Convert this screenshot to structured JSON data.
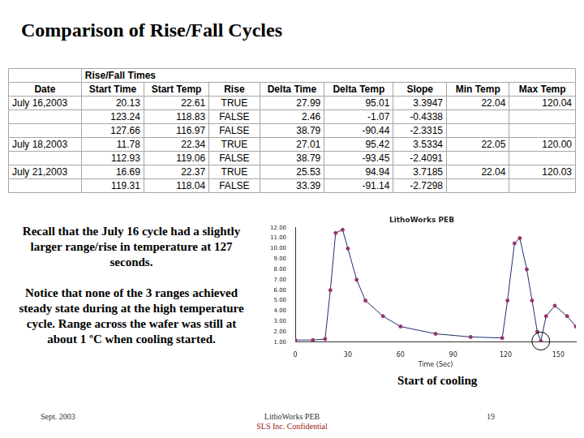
{
  "title": "Comparison of Rise/Fall Cycles",
  "table": {
    "group_header": "Rise/Fall Times",
    "columns": [
      "Date",
      "Start Time",
      "Start Temp",
      "Rise",
      "Delta Time",
      "Delta Temp",
      "Slope",
      "Min Temp",
      "Max Temp"
    ],
    "rows": [
      [
        "July 16,2003",
        "20.13",
        "22.61",
        "TRUE",
        "27.99",
        "95.01",
        "3.3947",
        "22.04",
        "120.04"
      ],
      [
        null,
        "123.24",
        "118.83",
        "FALSE",
        "2.46",
        "-1.07",
        "-0.4338",
        null,
        null
      ],
      [
        null,
        "127.66",
        "116.97",
        "FALSE",
        "38.79",
        "-90.44",
        "-2.3315",
        null,
        null
      ],
      [
        "July 18,2003",
        "11.78",
        "22.34",
        "TRUE",
        "27.01",
        "95.42",
        "3.5334",
        "22.05",
        "120.00"
      ],
      [
        null,
        "112.93",
        "119.06",
        "FALSE",
        "38.79",
        "-93.45",
        "-2.4091",
        null,
        null
      ],
      [
        "July 21,2003",
        "16.69",
        "22.37",
        "TRUE",
        "25.53",
        "94.94",
        "3.7185",
        "22.04",
        "120.03"
      ],
      [
        null,
        "119.31",
        "118.04",
        "FALSE",
        "33.39",
        "-91.14",
        "-2.7298",
        null,
        null
      ]
    ]
  },
  "paragraphs": [
    "Recall that the July 16 cycle had a slightly larger range/rise in temperature at 127 seconds.",
    "Notice that none of the 3 ranges achieved steady state during at the high temperature cycle. Range across the wafer was still at about 1 ºC when cooling started."
  ],
  "chart_data": {
    "type": "line",
    "title": "LithoWorks PEB",
    "x_label": "Time (Sec)",
    "annotation": "Start of cooling",
    "x": [
      0,
      10,
      17,
      20,
      23,
      27,
      30,
      35,
      40,
      50,
      60,
      80,
      100,
      118,
      121,
      125,
      128,
      132,
      135,
      138,
      140,
      143,
      148,
      155,
      160
    ],
    "values": [
      1.2,
      1.2,
      1.3,
      6,
      11.5,
      11.8,
      10,
      7,
      5,
      3.5,
      2.5,
      1.8,
      1.5,
      1.4,
      5,
      10.5,
      11,
      8,
      5,
      2,
      1.1,
      3.5,
      4.5,
      3.5,
      2.5
    ],
    "color": "#993366",
    "marker": "circle",
    "line_style": "solid",
    "xlim": [
      0,
      160
    ],
    "xticks": [
      0,
      30,
      60,
      90,
      120,
      150
    ],
    "ylim": [
      1,
      12
    ],
    "yticks": [
      {
        "value": 1,
        "label": "1.00"
      },
      {
        "value": 2,
        "label": "2.00"
      },
      {
        "value": 3,
        "label": "3.00"
      },
      {
        "value": 4,
        "label": "4.00"
      },
      {
        "value": 5,
        "label": "5.00"
      },
      {
        "value": 6,
        "label": "6.00"
      },
      {
        "value": 7,
        "label": "7.00"
      },
      {
        "value": 8,
        "label": "8.00"
      },
      {
        "value": 9,
        "label": "9.00"
      },
      {
        "value": 10,
        "label": "10.00"
      },
      {
        "value": 11,
        "label": "11.00"
      },
      {
        "value": 12,
        "label": "12.00"
      }
    ],
    "grid": false
  },
  "footer": {
    "left": "Sept. 2003",
    "center": [
      "LithoWorks PEB",
      "SLS Inc. Confidential"
    ],
    "right": "19"
  }
}
